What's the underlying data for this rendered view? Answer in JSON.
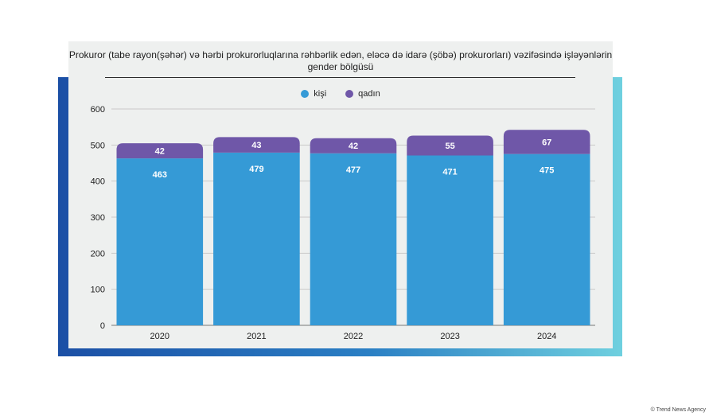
{
  "title": "Prokuror (tabe rayon(şəhər) və hərbi prokurorluqlarına rəhbərlik edən, eləcə də idarə (şöbə) prokurorları) vəzifəsində işləyənlərin gender bölgüsü",
  "credit": "© Trend News Agency",
  "colors": {
    "kisi": "#359ad6",
    "qadin": "#6f57a8"
  },
  "chart_data": {
    "type": "bar",
    "stacked": true,
    "title": "Prokuror (tabe rayon(şəhər) və hərbi prokurorluqlarına rəhbərlik edən, eləcə də idarə (şöbə) prokurorları) vəzifəsində işləyənlərin gender bölgüsü",
    "categories": [
      "2020",
      "2021",
      "2022",
      "2023",
      "2024"
    ],
    "series": [
      {
        "name": "kişi",
        "values": [
          463,
          479,
          477,
          471,
          475
        ]
      },
      {
        "name": "qadın",
        "values": [
          42,
          43,
          42,
          55,
          67
        ]
      }
    ],
    "ylim": [
      0,
      600
    ],
    "yticks": [
      "0",
      "100",
      "200",
      "300",
      "400",
      "500",
      "600"
    ],
    "xlabel": "",
    "ylabel": "",
    "grid": true,
    "legend": "top-center"
  }
}
